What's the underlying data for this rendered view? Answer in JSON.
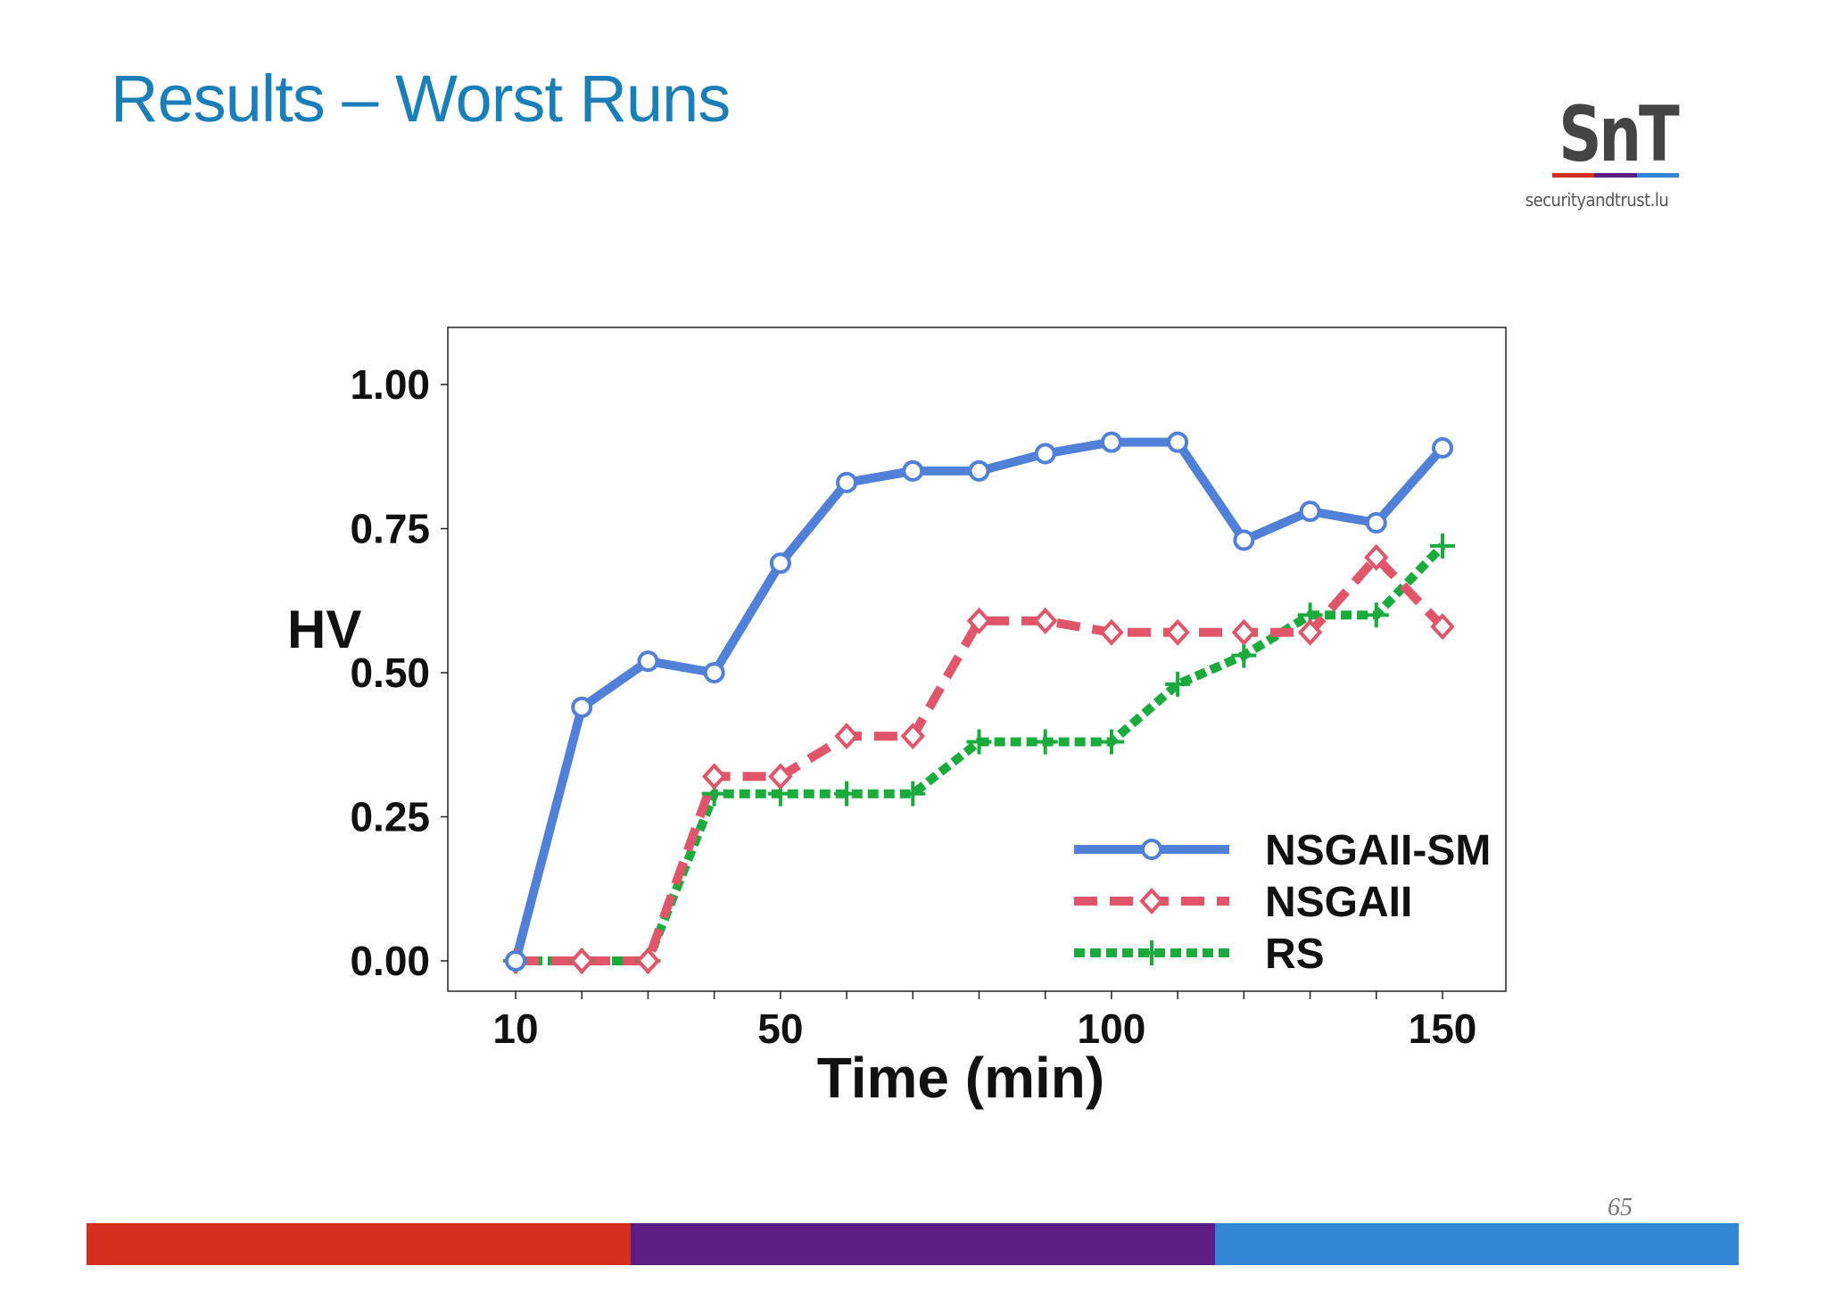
{
  "slide": {
    "title": "Results – Worst Runs",
    "page_number": "65"
  },
  "logo": {
    "mark": "SnT",
    "url": "securityandtrust.lu",
    "bar_colors": [
      "#d62f1f",
      "#5b1e82",
      "#2f86d4"
    ]
  },
  "footer_colors": [
    "#d62f1f",
    "#5b1e82",
    "#3385d6"
  ],
  "chart_data": {
    "type": "line",
    "xlabel": "Time (min)",
    "ylabel": "HV",
    "xlim": [
      0,
      155
    ],
    "ylim": [
      -0.05,
      1.1
    ],
    "xticks": [
      10,
      50,
      100,
      150
    ],
    "yticks": [
      0.0,
      0.25,
      0.5,
      0.75,
      1.0
    ],
    "ytick_labels": [
      "0.00",
      "0.25",
      "0.50",
      "0.75",
      "1.00"
    ],
    "minor_xticks": [
      10,
      20,
      30,
      40,
      50,
      60,
      70,
      80,
      90,
      100,
      110,
      120,
      130,
      140,
      150
    ],
    "legend_position": "lower-right",
    "x": [
      10,
      20,
      30,
      40,
      50,
      60,
      70,
      80,
      90,
      100,
      110,
      120,
      130,
      140,
      150
    ],
    "series": [
      {
        "name": "NSGAII-SM",
        "color": "#5080d8",
        "style": "solid",
        "marker": "circle",
        "values": [
          0.0,
          0.44,
          0.52,
          0.5,
          0.69,
          0.83,
          0.85,
          0.85,
          0.88,
          0.9,
          0.9,
          0.73,
          0.78,
          0.76,
          0.89
        ]
      },
      {
        "name": "NSGAII",
        "color": "#e05569",
        "style": "dashed",
        "marker": "diamond",
        "values": [
          0.0,
          0.0,
          0.0,
          0.32,
          0.32,
          0.39,
          0.39,
          0.59,
          0.59,
          0.57,
          0.57,
          0.57,
          0.57,
          0.7,
          0.58
        ]
      },
      {
        "name": "RS",
        "color": "#1aab3c",
        "style": "dotted",
        "marker": "plus",
        "values": [
          0.0,
          0.0,
          0.0,
          0.29,
          0.29,
          0.29,
          0.29,
          0.38,
          0.38,
          0.38,
          0.48,
          0.53,
          0.6,
          0.6,
          0.72
        ]
      }
    ]
  }
}
